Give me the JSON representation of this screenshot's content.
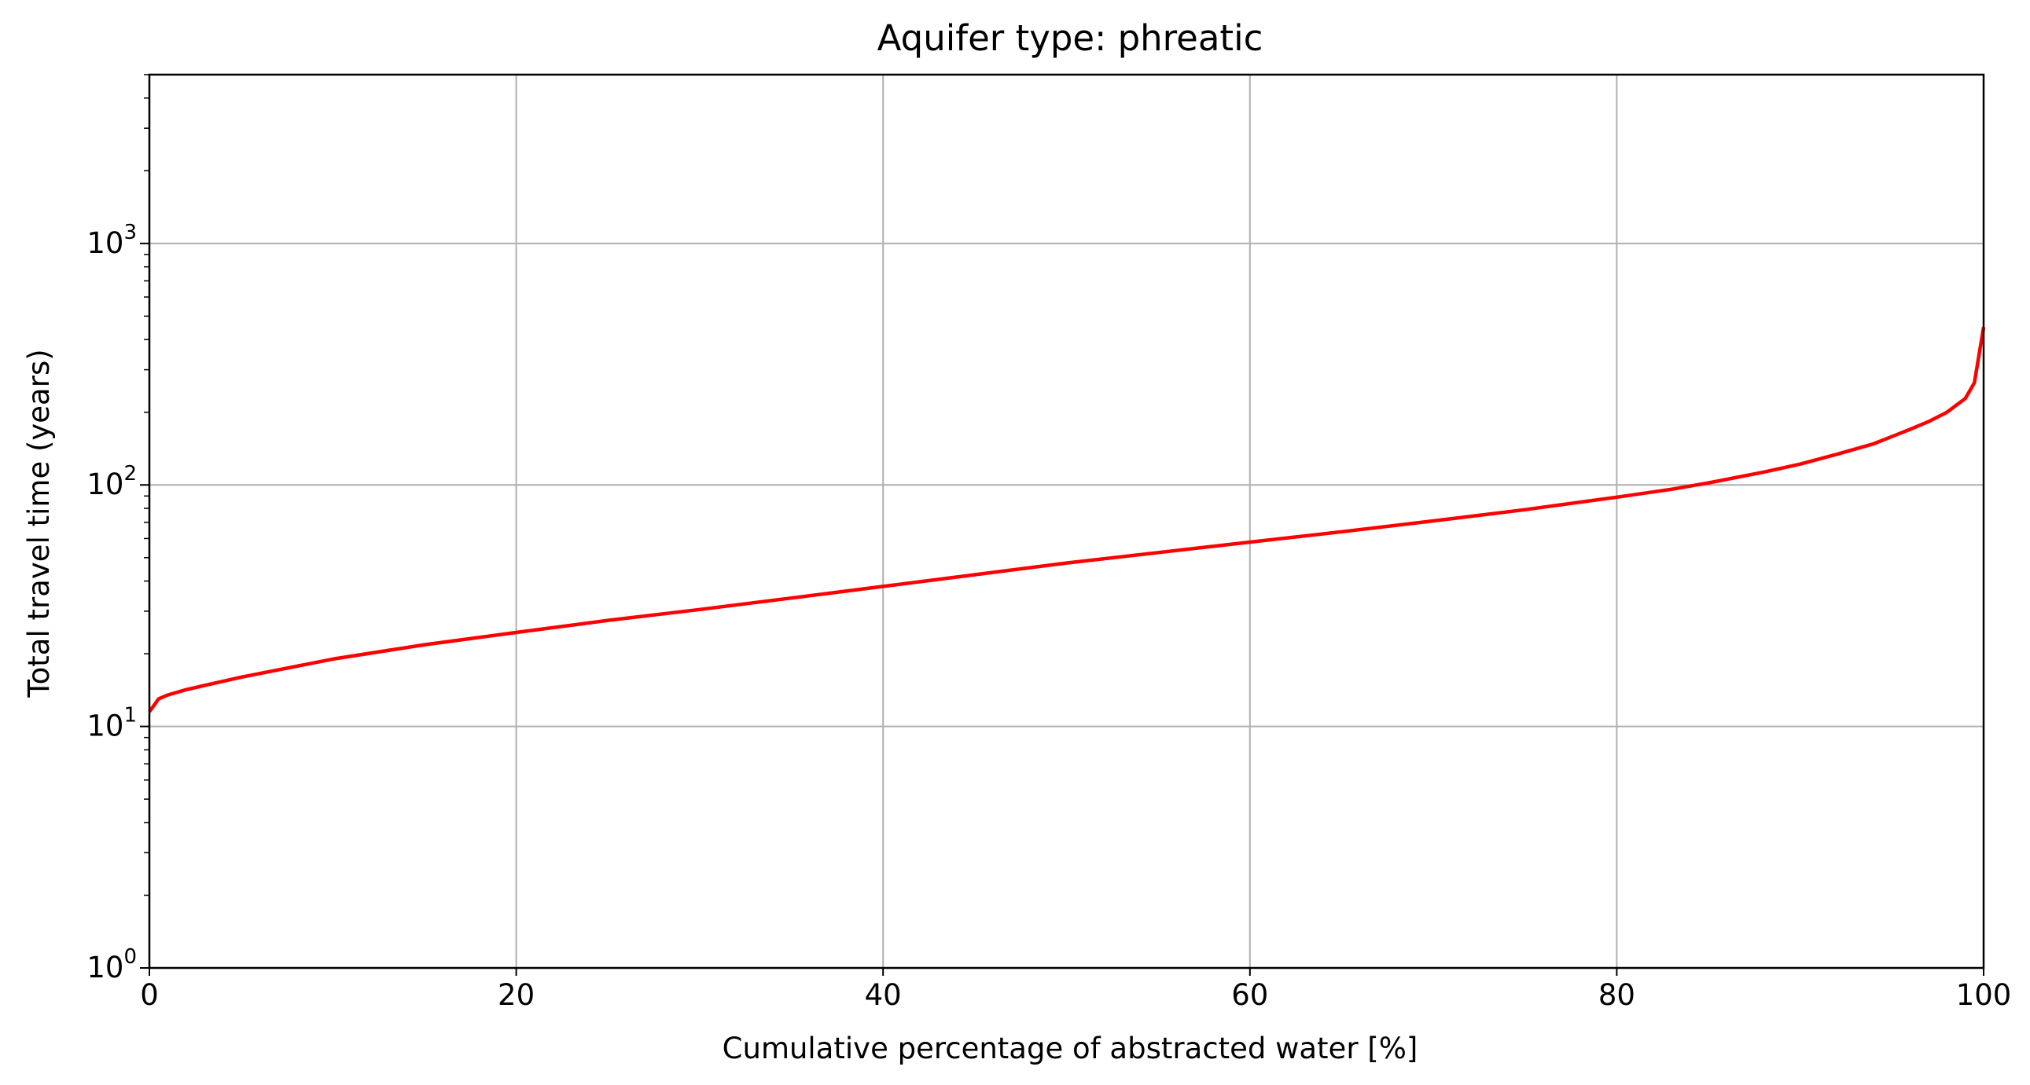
{
  "chart_data": {
    "type": "line",
    "title": "Aquifer type: phreatic",
    "xlabel": "Cumulative percentage of abstracted water [%]",
    "ylabel": "Total travel time (years)",
    "xlim": [
      0,
      100
    ],
    "ylim": [
      1,
      5000
    ],
    "yscale": "log",
    "grid": true,
    "x_ticks": [
      {
        "value": 0,
        "label": "0"
      },
      {
        "value": 20,
        "label": "20"
      },
      {
        "value": 40,
        "label": "40"
      },
      {
        "value": 60,
        "label": "60"
      },
      {
        "value": 80,
        "label": "80"
      },
      {
        "value": 100,
        "label": "100"
      }
    ],
    "y_ticks": [
      {
        "value": 1,
        "base": "10",
        "exponent": "0"
      },
      {
        "value": 10,
        "base": "10",
        "exponent": "1"
      },
      {
        "value": 100,
        "base": "10",
        "exponent": "2"
      },
      {
        "value": 1000,
        "base": "10",
        "exponent": "3"
      }
    ],
    "series": [
      {
        "color": "#ff0000",
        "x": [
          0,
          0.5,
          1,
          2,
          5,
          10,
          15,
          20,
          25,
          30,
          35,
          40,
          45,
          50,
          55,
          60,
          65,
          70,
          75,
          80,
          83,
          85,
          88,
          90,
          92,
          94,
          96,
          97,
          98,
          99,
          99.5,
          100
        ],
        "y": [
          11.5,
          13,
          13.5,
          14.2,
          16,
          19,
          21.8,
          24.5,
          27.5,
          30.5,
          34,
          38,
          42.5,
          47.5,
          52.5,
          58,
          64,
          71,
          79,
          89,
          96,
          102,
          113,
          122,
          134,
          148,
          170,
          183,
          200,
          228,
          265,
          450
        ]
      }
    ]
  },
  "colors": {
    "line": "#ff0000",
    "grid": "#b0b0b0",
    "axes": "#000000"
  }
}
